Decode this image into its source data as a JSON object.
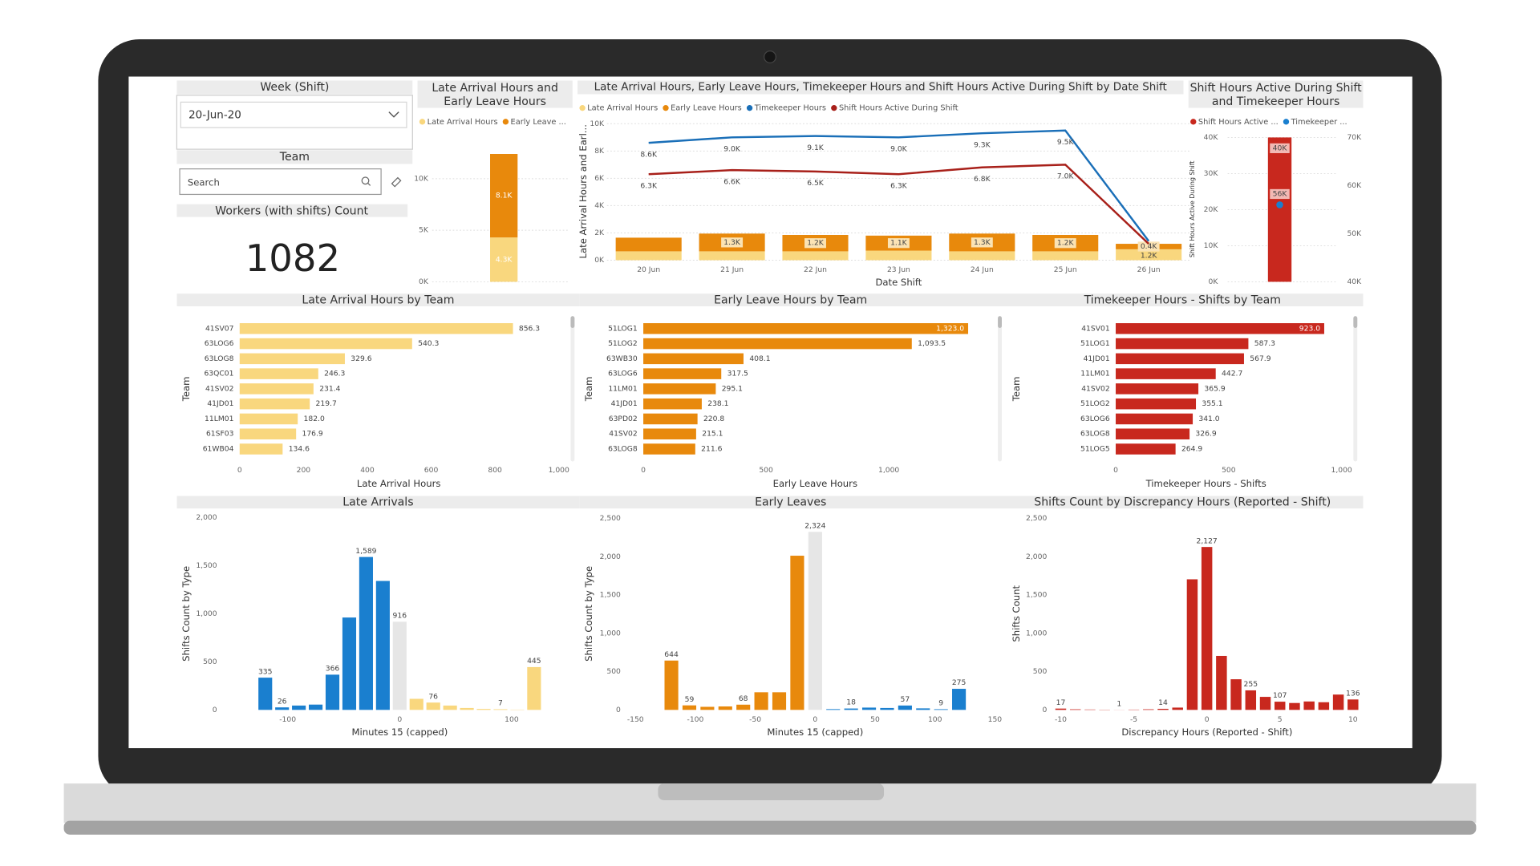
{
  "slicers": {
    "week": {
      "title": "Week (Shift)",
      "value": "20-Jun-20"
    },
    "team": {
      "title": "Team",
      "placeholder": "Search"
    }
  },
  "card": {
    "title": "Workers (with shifts) Count",
    "value": 1082
  },
  "chart_data": [
    {
      "type": "stacked_bar",
      "title": "Late Arrival Hours and Early Leave Hours",
      "series": [
        {
          "name": "Late Arrival Hours",
          "color": "#f9d77e",
          "values": [
            4300
          ],
          "value_labels": [
            "4.3K"
          ]
        },
        {
          "name": "Early Leave ...",
          "color": "#e8890c",
          "values": [
            8100
          ],
          "value_labels": [
            "8.1K"
          ]
        }
      ],
      "ylim": [
        0,
        15000
      ],
      "yticks": [
        {
          "value": 0,
          "label": "0K"
        },
        {
          "value": 5000,
          "label": "5K"
        },
        {
          "value": 10000,
          "label": "10K"
        }
      ],
      "grid": true
    },
    {
      "type": "combo",
      "title": "Late Arrival Hours, Early Leave Hours, Timekeeper Hours and Shift Hours Active During Shift by Date Shift",
      "categories": [
        "20 Jun",
        "21 Jun",
        "22 Jun",
        "23 Jun",
        "24 Jun",
        "25 Jun",
        "26 Jun"
      ],
      "series": [
        {
          "name": "Late Arrival Hours",
          "kind": "bar",
          "color": "#f9d77e",
          "values": [
            650,
            650,
            650,
            700,
            650,
            650,
            800
          ]
        },
        {
          "name": "Early Leave Hours",
          "kind": "bar",
          "color": "#e8890c",
          "values": [
            1000,
            1300,
            1200,
            1100,
            1300,
            1200,
            400
          ],
          "value_labels": [
            null,
            "1.3K",
            "1.2K",
            "1.1K",
            "1.3K",
            "1.2K",
            "0.4K"
          ]
        },
        {
          "name": "Timekeeper Hours",
          "kind": "line",
          "color": "#1a6fb8",
          "values": [
            8600,
            9000,
            9100,
            9000,
            9300,
            9500,
            1400
          ],
          "value_labels": [
            "8.6K",
            "9.0K",
            "9.1K",
            "9.0K",
            "9.3K",
            "9.5K",
            null
          ]
        },
        {
          "name": "Shift Hours Active During Shift",
          "kind": "line",
          "color": "#a8201a",
          "values": [
            6300,
            6600,
            6500,
            6300,
            6800,
            7000,
            1200
          ],
          "value_labels": [
            "6.3K",
            "6.6K",
            "6.5K",
            "6.3K",
            "6.8K",
            "7.0K",
            "1.2K"
          ]
        }
      ],
      "ylim": [
        0,
        10000
      ],
      "yticks": [
        {
          "value": 0,
          "label": "0K"
        },
        {
          "value": 2000,
          "label": "2K"
        },
        {
          "value": 4000,
          "label": "4K"
        },
        {
          "value": 6000,
          "label": "6K"
        },
        {
          "value": 8000,
          "label": "8K"
        },
        {
          "value": 10000,
          "label": "10K"
        }
      ],
      "y_label": "Late Arrival Hours and Earl...",
      "x_label": "Date Shift",
      "grid": true
    },
    {
      "type": "bar_marker",
      "title": "Shift Hours Active During Shift and Timekeeper Hours",
      "series": [
        {
          "name": "Shift Hours Active ...",
          "kind": "bar",
          "color": "#c8281e",
          "values": [
            40000
          ],
          "value_labels": [
            "40K"
          ]
        },
        {
          "name": "Timekeeper ...",
          "kind": "marker",
          "axis": "y2",
          "color": "#1a7fcf",
          "values": [
            56000
          ],
          "value_labels": [
            "56K"
          ]
        }
      ],
      "ylim": [
        0,
        40000
      ],
      "yticks": [
        {
          "value": 0,
          "label": "0K"
        },
        {
          "value": 10000,
          "label": "10K"
        },
        {
          "value": 20000,
          "label": "20K"
        },
        {
          "value": 30000,
          "label": "30K"
        },
        {
          "value": 40000,
          "label": "40K"
        }
      ],
      "y2lim": [
        40000,
        70000
      ],
      "y2ticks": [
        {
          "value": 40000,
          "label": "40K"
        },
        {
          "value": 50000,
          "label": "50K"
        },
        {
          "value": 60000,
          "label": "60K"
        },
        {
          "value": 70000,
          "label": "70K"
        }
      ],
      "y_label": "Shift Hours Active During Shift",
      "grid": true
    },
    {
      "type": "hbar",
      "title": "Late Arrival Hours by Team",
      "categories": [
        "41SV07",
        "63LOG6",
        "63LOG8",
        "63QC01",
        "41SV02",
        "41JD01",
        "11LM01",
        "61SF03",
        "61WB04"
      ],
      "values": [
        856.3,
        540.3,
        329.6,
        246.3,
        231.4,
        219.7,
        182.0,
        176.9,
        134.6
      ],
      "value_labels": [
        "856.3",
        "540.3",
        "329.6",
        "246.3",
        "231.4",
        "219.7",
        "182.0",
        "176.9",
        "134.6"
      ],
      "color": "#f9d77e",
      "xlim": [
        0,
        1000
      ],
      "xticks": [
        0,
        200,
        400,
        600,
        800,
        {
          "value": 1000,
          "label": "1,000"
        }
      ],
      "x_label": "Late Arrival Hours",
      "y_label": "Team",
      "grid": false
    },
    {
      "type": "hbar",
      "title": "Early Leave Hours by Team",
      "categories": [
        "51LOG1",
        "51LOG2",
        "63WB30",
        "63LOG6",
        "11LM01",
        "41JD01",
        "63PD02",
        "41SV02",
        "63LOG8"
      ],
      "values": [
        1323.0,
        1093.5,
        408.1,
        317.5,
        295.1,
        238.1,
        220.8,
        215.1,
        211.6
      ],
      "value_labels": [
        "1,323.0",
        "1,093.5",
        "408.1",
        "317.5",
        "295.1",
        "238.1",
        "220.8",
        "215.1",
        "211.6"
      ],
      "color": "#e8890c",
      "xlim": [
        0,
        1400
      ],
      "xticks": [
        0,
        500,
        {
          "value": 1000,
          "label": "1,000"
        }
      ],
      "x_label": "Early Leave Hours",
      "y_label": "Team",
      "grid": false
    },
    {
      "type": "hbar",
      "title": "Timekeeper Hours - Shifts by Team",
      "categories": [
        "41SV01",
        "51LOG1",
        "41JD01",
        "11LM01",
        "41SV02",
        "51LOG2",
        "63LOG6",
        "63LOG8",
        "51LOG5"
      ],
      "values": [
        923.0,
        587.3,
        567.9,
        442.7,
        365.9,
        355.1,
        341.0,
        326.9,
        264.9
      ],
      "value_labels": [
        "923.0",
        "587.3",
        "567.9",
        "442.7",
        "365.9",
        "355.1",
        "341.0",
        "326.9",
        "264.9"
      ],
      "color": "#c8281e",
      "xlim": [
        0,
        1000
      ],
      "xticks": [
        0,
        500,
        {
          "value": 1000,
          "label": "1,000"
        }
      ],
      "x_label": "Timekeeper Hours - Shifts",
      "y_label": "Team",
      "grid": false
    },
    {
      "type": "bar",
      "title": "Late Arrivals",
      "x": [
        -120,
        -105,
        -90,
        -75,
        -60,
        -45,
        -30,
        -15,
        0,
        15,
        30,
        45,
        60,
        75,
        90,
        105,
        120
      ],
      "values": [
        335,
        26,
        45,
        55,
        366,
        960,
        1589,
        1340,
        916,
        115,
        76,
        45,
        20,
        10,
        7,
        3,
        445
      ],
      "value_labels": [
        "335",
        "26",
        null,
        null,
        "366",
        null,
        "1,589",
        null,
        "916",
        null,
        "76",
        null,
        null,
        null,
        "7",
        null,
        "445"
      ],
      "colors": [
        "#1a7fcf",
        "#1a7fcf",
        "#1a7fcf",
        "#1a7fcf",
        "#1a7fcf",
        "#1a7fcf",
        "#1a7fcf",
        "#1a7fcf",
        "#e6e6e6",
        "#f9d77e",
        "#f9d77e",
        "#f9d77e",
        "#f9d77e",
        "#f9d77e",
        "#f9d77e",
        "#f9d77e",
        "#f9d77e"
      ],
      "xlim": [
        -135,
        150
      ],
      "xticks": [
        -100,
        0,
        100
      ],
      "ylim": [
        0,
        2000
      ],
      "yticks": [
        0,
        500,
        {
          "value": 1000,
          "label": "1,000"
        },
        {
          "value": 1500,
          "label": "1,500"
        },
        {
          "value": 2000,
          "label": "2,000"
        }
      ],
      "x_label": "Minutes 15 (capped)",
      "y_label": "Shifts Count by Type",
      "grid": false
    },
    {
      "type": "bar",
      "title": "Early Leaves",
      "x": [
        -120,
        -105,
        -90,
        -75,
        -60,
        -45,
        -30,
        -15,
        0,
        15,
        30,
        45,
        60,
        75,
        90,
        105,
        120
      ],
      "values": [
        644,
        59,
        40,
        45,
        68,
        230,
        230,
        2013,
        2324,
        10,
        18,
        30,
        25,
        57,
        20,
        9,
        275
      ],
      "value_labels": [
        "644",
        "59",
        null,
        null,
        "68",
        null,
        null,
        null,
        "2,324",
        null,
        "18",
        null,
        null,
        "57",
        null,
        "9",
        "275"
      ],
      "colors": [
        "#e8890c",
        "#e8890c",
        "#e8890c",
        "#e8890c",
        "#e8890c",
        "#e8890c",
        "#e8890c",
        "#e8890c",
        "#e6e6e6",
        "#1a7fcf",
        "#1a7fcf",
        "#1a7fcf",
        "#1a7fcf",
        "#1a7fcf",
        "#1a7fcf",
        "#1a7fcf",
        "#1a7fcf"
      ],
      "xlim": [
        -150,
        150
      ],
      "xticks": [
        -150,
        -100,
        -50,
        0,
        50,
        100,
        150
      ],
      "ylim": [
        0,
        2500
      ],
      "yticks": [
        0,
        500,
        {
          "value": 1000,
          "label": "1,000"
        },
        {
          "value": 1500,
          "label": "1,500"
        },
        {
          "value": 2000,
          "label": "2,000"
        },
        {
          "value": 2500,
          "label": "2,500"
        }
      ],
      "x_label": "Minutes 15 (capped)",
      "y_label": "Shifts Count by Type",
      "grid": false
    },
    {
      "type": "bar",
      "title": "Shifts Count by Discrepancy Hours (Reported - Shift)",
      "x": [
        -10,
        -9,
        -8,
        -7,
        -6,
        -5,
        -4,
        -3,
        -2,
        -1,
        0,
        1,
        2,
        3,
        4,
        5,
        6,
        7,
        8,
        9,
        10
      ],
      "values": [
        17,
        8,
        5,
        3,
        1,
        4,
        8,
        14,
        30,
        1705,
        2127,
        705,
        400,
        255,
        170,
        107,
        90,
        110,
        100,
        200,
        136
      ],
      "value_labels": [
        "17",
        null,
        null,
        null,
        "1",
        null,
        null,
        "14",
        null,
        null,
        "2,127",
        null,
        null,
        "255",
        null,
        "107",
        null,
        null,
        null,
        null,
        "136"
      ],
      "color": "#c8281e",
      "xlim": [
        -10.5,
        10.5
      ],
      "xticks": [
        -10,
        -5,
        0,
        5,
        10
      ],
      "ylim": [
        0,
        2500
      ],
      "yticks": [
        0,
        500,
        {
          "value": 1000,
          "label": "1,000"
        },
        {
          "value": 1500,
          "label": "1,500"
        },
        {
          "value": 2000,
          "label": "2,000"
        },
        {
          "value": 2500,
          "label": "2,500"
        }
      ],
      "x_label": "Discrepancy Hours (Reported - Shift)",
      "y_label": "Shifts Count",
      "grid": false
    }
  ]
}
